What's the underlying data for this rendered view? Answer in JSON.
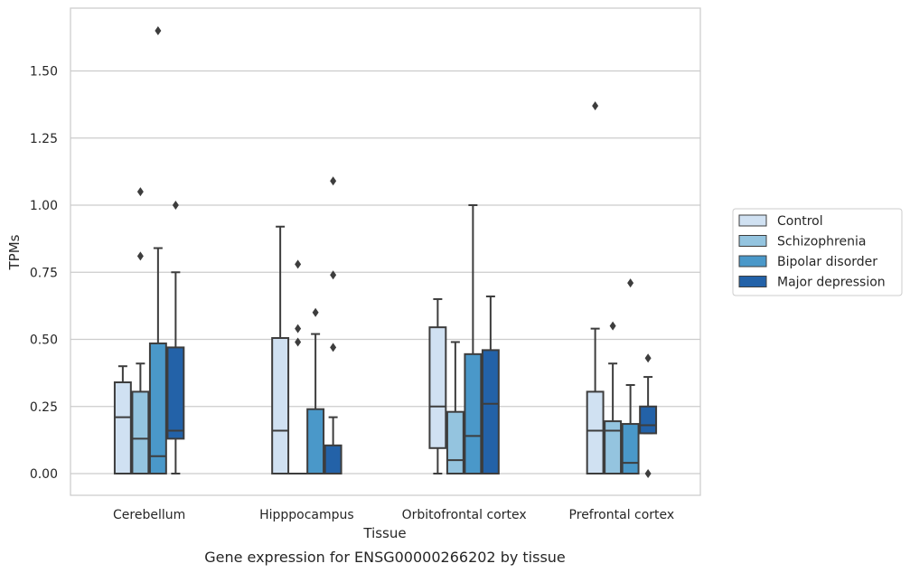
{
  "caption": "Gene expression for ENSG00000266202 by tissue",
  "chart_data": {
    "type": "box",
    "title": "",
    "xlabel": "Tissue",
    "ylabel": "TPMs",
    "ylim": [
      -0.08,
      1.75
    ],
    "yticks": [
      0.0,
      0.25,
      0.5,
      0.75,
      1.0,
      1.25,
      1.5
    ],
    "ytick_labels": [
      "0.00",
      "0.25",
      "0.50",
      "0.75",
      "1.00",
      "1.25",
      "1.50"
    ],
    "grid": "horizontal",
    "legend_position": "right",
    "categories": [
      "Cerebellum",
      "Hipppocampus",
      "Orbitofrontal cortex",
      "Prefrontal cortex"
    ],
    "series": [
      {
        "name": "Control",
        "color": "#d0e1f2",
        "boxes": [
          {
            "whisker_low": 0.0,
            "q1": 0.0,
            "median": 0.21,
            "q3": 0.34,
            "whisker_high": 0.4,
            "outliers": []
          },
          {
            "whisker_low": 0.0,
            "q1": 0.0,
            "median": 0.16,
            "q3": 0.505,
            "whisker_high": 0.92,
            "outliers": []
          },
          {
            "whisker_low": 0.0,
            "q1": 0.095,
            "median": 0.25,
            "q3": 0.545,
            "whisker_high": 0.65,
            "outliers": []
          },
          {
            "whisker_low": 0.0,
            "q1": 0.0,
            "median": 0.16,
            "q3": 0.305,
            "whisker_high": 0.54,
            "outliers": [
              1.37
            ]
          }
        ]
      },
      {
        "name": "Schizophrenia",
        "color": "#94c4df",
        "boxes": [
          {
            "whisker_low": 0.0,
            "q1": 0.0,
            "median": 0.13,
            "q3": 0.305,
            "whisker_high": 0.41,
            "outliers": [
              0.81,
              1.05
            ]
          },
          {
            "whisker_low": 0.0,
            "q1": 0.0,
            "median": 0.0,
            "q3": 0.0,
            "whisker_high": 0.0,
            "outliers": [
              0.49,
              0.54,
              0.78
            ]
          },
          {
            "whisker_low": 0.0,
            "q1": 0.0,
            "median": 0.05,
            "q3": 0.23,
            "whisker_high": 0.49,
            "outliers": []
          },
          {
            "whisker_low": 0.0,
            "q1": 0.0,
            "median": 0.16,
            "q3": 0.195,
            "whisker_high": 0.41,
            "outliers": [
              0.55
            ]
          }
        ]
      },
      {
        "name": "Bipolar disorder",
        "color": "#4a98c9",
        "boxes": [
          {
            "whisker_low": 0.0,
            "q1": 0.0,
            "median": 0.065,
            "q3": 0.485,
            "whisker_high": 0.84,
            "outliers": [
              1.65
            ]
          },
          {
            "whisker_low": 0.0,
            "q1": 0.0,
            "median": 0.0,
            "q3": 0.24,
            "whisker_high": 0.52,
            "outliers": [
              0.6
            ]
          },
          {
            "whisker_low": 0.0,
            "q1": 0.0,
            "median": 0.14,
            "q3": 0.445,
            "whisker_high": 1.0,
            "outliers": []
          },
          {
            "whisker_low": 0.0,
            "q1": 0.0,
            "median": 0.04,
            "q3": 0.185,
            "whisker_high": 0.33,
            "outliers": [
              0.71
            ]
          }
        ]
      },
      {
        "name": "Major depression",
        "color": "#2362a8",
        "boxes": [
          {
            "whisker_low": 0.0,
            "q1": 0.13,
            "median": 0.16,
            "q3": 0.47,
            "whisker_high": 0.75,
            "outliers": [
              1.0
            ]
          },
          {
            "whisker_low": 0.0,
            "q1": 0.0,
            "median": 0.0,
            "q3": 0.105,
            "whisker_high": 0.21,
            "outliers": [
              0.47,
              0.74,
              1.09
            ]
          },
          {
            "whisker_low": 0.0,
            "q1": 0.0,
            "median": 0.26,
            "q3": 0.46,
            "whisker_high": 0.66,
            "outliers": []
          },
          {
            "whisker_low": 0.15,
            "q1": 0.15,
            "median": 0.18,
            "q3": 0.25,
            "whisker_high": 0.36,
            "outliers": [
              0.0,
              0.43
            ]
          }
        ]
      }
    ]
  }
}
